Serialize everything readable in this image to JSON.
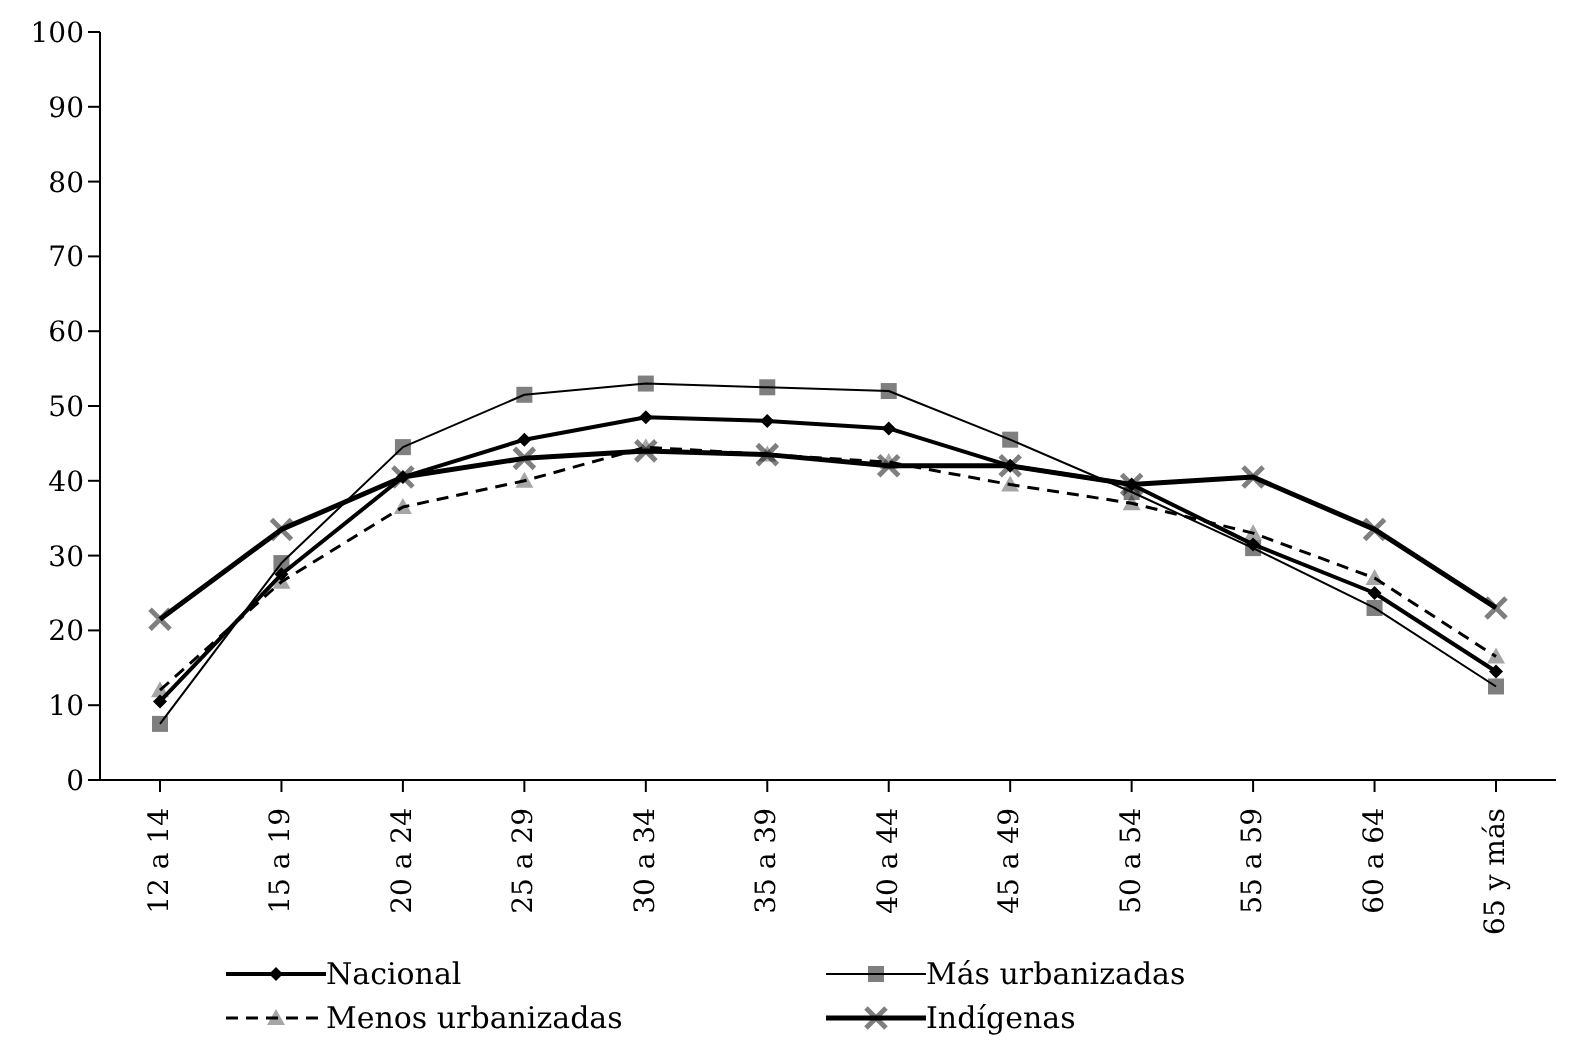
{
  "chart_data": {
    "type": "line",
    "categories": [
      "12 a 14",
      "15 a 19",
      "20 a 24",
      "25 a 29",
      "30 a 34",
      "35 a 39",
      "40 a 44",
      "45 a 49",
      "50 a 54",
      "55 a 59",
      "60 a 64",
      "65 y más"
    ],
    "series": [
      {
        "name": "Nacional",
        "color": "#000000",
        "marker": "diamond",
        "line_style": "solid",
        "values": [
          10.5,
          27.5,
          40.5,
          45.5,
          48.5,
          48,
          47,
          42,
          39.5,
          31.5,
          25,
          14.5
        ]
      },
      {
        "name": "Más urbanizadas",
        "color": "#000000",
        "marker": "square",
        "line_style": "solid",
        "values": [
          7.5,
          29,
          44.5,
          51.5,
          53,
          52.5,
          52,
          45.5,
          38.5,
          31,
          23,
          12.5
        ]
      },
      {
        "name": "Menos urbanizadas",
        "color": "#000000",
        "marker": "triangle",
        "line_style": "dashed",
        "values": [
          12,
          26.5,
          36.5,
          40,
          44.5,
          43.5,
          42.5,
          39.5,
          37,
          33,
          27,
          16.5
        ]
      },
      {
        "name": "Indígenas",
        "color": "#000000",
        "marker": "cross",
        "line_style": "solid",
        "values": [
          21.5,
          33.5,
          40.5,
          43,
          44,
          43.5,
          42,
          42,
          39.5,
          40.5,
          33.5,
          23
        ]
      }
    ],
    "ylim": [
      0,
      100
    ],
    "yticks": [
      0,
      10,
      20,
      30,
      40,
      50,
      60,
      70,
      80,
      90,
      100
    ],
    "grid": false,
    "legend": "bottom"
  }
}
